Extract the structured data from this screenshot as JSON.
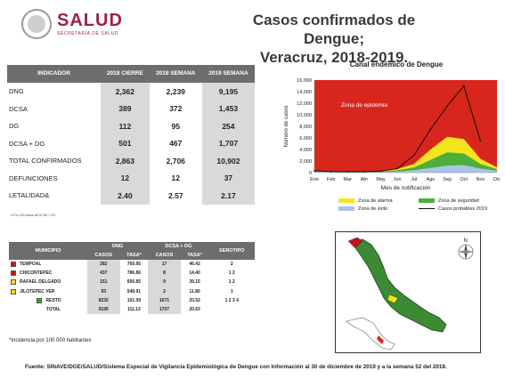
{
  "header": {
    "logo_main": "SALUD",
    "logo_sub": "SECRETARÍA DE SALUD",
    "title_line1": "Casos confirmados de Dengue;",
    "title_line2": "Veracruz, 2018-2019."
  },
  "indicators": {
    "headers": [
      "INDICADOR",
      "2018 CIERRE",
      "2018 SEMANA",
      "2019 SEMANA"
    ],
    "rows": [
      {
        "label": "DNG",
        "v1": "2,362",
        "v2": "2,239",
        "v3": "9,195"
      },
      {
        "label": "DCSA",
        "v1": "389",
        "v2": "372",
        "v3": "1,453"
      },
      {
        "label": "DG",
        "v1": "112",
        "v2": "95",
        "v3": "254"
      },
      {
        "label": "DCSA + DG",
        "v1": "501",
        "v2": "467",
        "v3": "1,707"
      },
      {
        "label": "TOTAL CONFIRMADOS",
        "v1": "2,863",
        "v2": "2,706",
        "v3": "10,902"
      },
      {
        "label": "DEFUNCIONES",
        "v1": "12",
        "v2": "12",
        "v3": "37"
      },
      {
        "label": "LETALIDAD&",
        "v1": "2.40",
        "v2": "2.57",
        "v3": "2.17"
      }
    ],
    "footnote": "& Por 100 casos de DCSA + DG"
  },
  "chart_data": {
    "type": "area",
    "title": "Canal endémico de Dengue",
    "xlabel": "Mes de notificación",
    "ylabel": "Número de casos",
    "categories": [
      "Ene",
      "Feb",
      "Mar",
      "Abr",
      "May",
      "Jun",
      "Jul",
      "Ago",
      "Sep",
      "Oct",
      "Nov",
      "Dic"
    ],
    "yticks": [
      "0",
      "2,000",
      "4,000",
      "6,000",
      "8,000",
      "10,000",
      "12,000",
      "14,000",
      "16,000"
    ],
    "ylim": [
      0,
      16000
    ],
    "annotation": "Zona de epidemia",
    "series": [
      {
        "name": "Zona de éxito",
        "color": "#a9c4e8",
        "values": [
          150,
          120,
          100,
          90,
          100,
          200,
          400,
          800,
          1200,
          1300,
          700,
          300
        ]
      },
      {
        "name": "Zona de seguridad",
        "color": "#4caf3c",
        "values": [
          250,
          200,
          170,
          160,
          180,
          400,
          900,
          2200,
          3500,
          3300,
          1500,
          600
        ]
      },
      {
        "name": "Zona de alarma",
        "color": "#f5e51e",
        "values": [
          320,
          260,
          220,
          200,
          240,
          600,
          1500,
          4000,
          6200,
          5800,
          2400,
          900
        ]
      },
      {
        "name": "Casos probables 2019",
        "color": "#111111",
        "values": [
          300,
          200,
          150,
          150,
          250,
          700,
          3000,
          7500,
          11500,
          15000,
          5500,
          null
        ]
      }
    ],
    "epidemic_color": "#d9261c"
  },
  "municipalities": {
    "group_dng": "DNG",
    "group_dcsa": "DCSA + DG",
    "col_municipio": "MUNICIPIO",
    "col_serotipo": "SEROTIPO",
    "col_casos": "CASOS",
    "col_tasa": "TASA*",
    "col_tasa2": "TASA*",
    "rows": [
      {
        "name": "TEMPOAL",
        "color": "#c0141c",
        "c1": "282",
        "t1": "769.95",
        "c2": "17",
        "t2": "46.42",
        "s": "2"
      },
      {
        "name": "CHICONTEPEC",
        "color": "#c0141c",
        "c1": "437",
        "t1": "786.86",
        "c2": "8",
        "t2": "14.40",
        "s": "1  2"
      },
      {
        "name": "RAFAEL DELGADO",
        "color": "#f2e21a",
        "c1": "151",
        "t1": "656.85",
        "c2": "9",
        "t2": "39.15",
        "s": "1  2"
      },
      {
        "name": "JILOTEPEC VER",
        "color": "#f2e21a",
        "c1": "93",
        "t1": "548.91",
        "c2": "2",
        "t2": "11.80",
        "s": "1"
      },
      {
        "name": "RESTO",
        "color": "#3fa535",
        "c1": "8232",
        "t1": "101.09",
        "c2": "1671",
        "t2": "20.52",
        "s": "1  2  3  4"
      },
      {
        "name": "TOTAL",
        "color": "",
        "c1": "9195",
        "t1": "111.12",
        "c2": "1707",
        "t2": "20.63",
        "s": ""
      }
    ],
    "footnote": "*Incidencia por 100 000 habitantes"
  },
  "map": {
    "compass": "N"
  },
  "footer": "Fuente: SINAVE/DGE/SALUD/Sistema Especial de Vigilancia Epidemiológica de Dengue con Información al 30 de diciembre de 2019 y a la semana 52 del 2018."
}
